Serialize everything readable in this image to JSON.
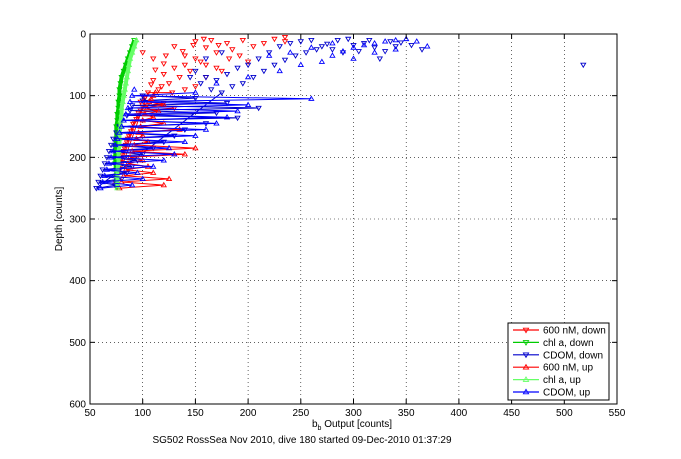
{
  "chart_data": {
    "type": "scatter",
    "title": "",
    "xlabel_main": "b",
    "xlabel_sub": "b",
    "xlabel_rest": " Output [counts]",
    "ylabel": "Depth [counts]",
    "caption": "SG502 RossSea Nov 2010, dive 180 started 09-Dec-2010 01:37:29",
    "xlim": [
      50,
      550
    ],
    "ylim": [
      0,
      600
    ],
    "y_reversed": true,
    "grid": true,
    "grid_style": "dotted",
    "legend_position": "bottom-right",
    "xticks": [
      {
        "v": 50,
        "label": "50"
      },
      {
        "v": 100,
        "label": "100"
      },
      {
        "v": 150,
        "label": "150"
      },
      {
        "v": 200,
        "label": "200"
      },
      {
        "v": 250,
        "label": "250"
      },
      {
        "v": 300,
        "label": "300"
      },
      {
        "v": 350,
        "label": "350"
      },
      {
        "v": 400,
        "label": "400"
      },
      {
        "v": 450,
        "label": "450"
      },
      {
        "v": 500,
        "label": "500"
      },
      {
        "v": 550,
        "label": "550"
      }
    ],
    "yticks": [
      {
        "v": 0,
        "label": "0"
      },
      {
        "v": 100,
        "label": "100"
      },
      {
        "v": 200,
        "label": "200"
      },
      {
        "v": 300,
        "label": "300"
      },
      {
        "v": 400,
        "label": "400"
      },
      {
        "v": 500,
        "label": "500"
      },
      {
        "v": 600,
        "label": "600"
      }
    ],
    "series": [
      {
        "name": "600 nM, down",
        "color": "#ff0000",
        "marker": "tri-down",
        "show_points": true,
        "connect": "spikes",
        "points": [
          [
            100,
            100
          ],
          [
            102,
            104
          ],
          [
            98,
            110
          ],
          [
            104,
            116
          ],
          [
            120,
            112
          ],
          [
            100,
            118
          ],
          [
            98,
            124
          ],
          [
            130,
            120
          ],
          [
            96,
            128
          ],
          [
            95,
            132
          ],
          [
            94,
            138
          ],
          [
            92,
            142
          ],
          [
            91,
            146
          ],
          [
            90,
            152
          ],
          [
            89,
            158
          ],
          [
            88,
            162
          ],
          [
            87,
            166
          ],
          [
            86,
            170
          ],
          [
            85,
            176
          ],
          [
            84,
            180
          ],
          [
            83,
            186
          ],
          [
            82,
            190
          ],
          [
            81,
            196
          ],
          [
            80,
            202
          ],
          [
            79,
            208
          ],
          [
            78,
            214
          ],
          [
            77,
            220
          ],
          [
            76,
            226
          ],
          [
            75,
            232
          ],
          [
            74,
            240
          ],
          [
            74,
            246
          ],
          [
            100,
            30
          ],
          [
            110,
            40
          ],
          [
            120,
            48
          ],
          [
            130,
            20
          ],
          [
            140,
            35
          ],
          [
            150,
            12
          ],
          [
            160,
            22
          ],
          [
            170,
            30
          ],
          [
            180,
            15
          ],
          [
            165,
            10
          ],
          [
            155,
            45
          ],
          [
            145,
            60
          ],
          [
            135,
            70
          ],
          [
            125,
            80
          ],
          [
            115,
            90
          ],
          [
            105,
            95
          ],
          [
            110,
            75
          ],
          [
            120,
            65
          ],
          [
            130,
            55
          ],
          [
            140,
            50
          ],
          [
            150,
            40
          ],
          [
            160,
            50
          ],
          [
            175,
            60
          ],
          [
            185,
            25
          ],
          [
            195,
            10
          ],
          [
            205,
            20
          ],
          [
            215,
            15
          ],
          [
            225,
            8
          ],
          [
            235,
            5
          ],
          [
            235,
            12
          ],
          [
            140,
            90
          ],
          [
            150,
            85
          ],
          [
            160,
            70
          ],
          [
            170,
            55
          ],
          [
            182,
            40
          ],
          [
            192,
            35
          ],
          [
            200,
            45
          ],
          [
            128,
            95
          ],
          [
            118,
            85
          ],
          [
            108,
            82
          ],
          [
            112,
            58
          ],
          [
            122,
            35
          ],
          [
            138,
            28
          ],
          [
            148,
            18
          ],
          [
            158,
            8
          ],
          [
            172,
            18
          ]
        ]
      },
      {
        "name": "chl a, down",
        "color": "#00cc00",
        "marker": "tri-down",
        "show_points": true,
        "connect": "dense",
        "points": [
          [
            92,
            10
          ],
          [
            90,
            20
          ],
          [
            88,
            30
          ],
          [
            86,
            40
          ],
          [
            84,
            50
          ],
          [
            82,
            60
          ],
          [
            80,
            70
          ],
          [
            79,
            80
          ],
          [
            78,
            90
          ],
          [
            78,
            100
          ],
          [
            77,
            110
          ],
          [
            77,
            120
          ],
          [
            76,
            130
          ],
          [
            76,
            140
          ],
          [
            75,
            150
          ],
          [
            75,
            160
          ],
          [
            75,
            170
          ],
          [
            74,
            180
          ],
          [
            74,
            190
          ],
          [
            74,
            200
          ],
          [
            74,
            210
          ],
          [
            75,
            220
          ],
          [
            75,
            230
          ],
          [
            75,
            240
          ],
          [
            75,
            248
          ]
        ]
      },
      {
        "name": "CDOM, down",
        "color": "#0000cc",
        "marker": "tri-down",
        "show_points": true,
        "connect": "spikes",
        "points": [
          [
            100,
            100
          ],
          [
            150,
            104
          ],
          [
            100,
            108
          ],
          [
            180,
            112
          ],
          [
            90,
            116
          ],
          [
            210,
            120
          ],
          [
            88,
            124
          ],
          [
            170,
            128
          ],
          [
            85,
            132
          ],
          [
            190,
            136
          ],
          [
            80,
            140
          ],
          [
            160,
            145
          ],
          [
            78,
            150
          ],
          [
            140,
            155
          ],
          [
            75,
            160
          ],
          [
            130,
            165
          ],
          [
            72,
            170
          ],
          [
            120,
            175
          ],
          [
            70,
            180
          ],
          [
            110,
            185
          ],
          [
            68,
            190
          ],
          [
            100,
            195
          ],
          [
            66,
            200
          ],
          [
            95,
            205
          ],
          [
            64,
            210
          ],
          [
            90,
            215
          ],
          [
            62,
            220
          ],
          [
            85,
            225
          ],
          [
            60,
            230
          ],
          [
            80,
            235
          ],
          [
            58,
            240
          ],
          [
            75,
            245
          ],
          [
            56,
            250
          ],
          [
            150,
            60
          ],
          [
            160,
            70
          ],
          [
            170,
            75
          ],
          [
            180,
            65
          ],
          [
            190,
            55
          ],
          [
            200,
            50
          ],
          [
            210,
            40
          ],
          [
            220,
            30
          ],
          [
            230,
            20
          ],
          [
            240,
            15
          ],
          [
            250,
            12
          ],
          [
            260,
            10
          ],
          [
            270,
            20
          ],
          [
            280,
            25
          ],
          [
            290,
            30
          ],
          [
            300,
            18
          ],
          [
            310,
            15
          ],
          [
            320,
            22
          ],
          [
            330,
            28
          ],
          [
            340,
            20
          ],
          [
            160,
            40
          ],
          [
            175,
            30
          ],
          [
            185,
            85
          ],
          [
            195,
            80
          ],
          [
            205,
            70
          ],
          [
            165,
            90
          ],
          [
            175,
            95
          ],
          [
            155,
            80
          ],
          [
            145,
            70
          ],
          [
            215,
            60
          ],
          [
            225,
            50
          ],
          [
            235,
            42
          ],
          [
            245,
            35
          ],
          [
            255,
            30
          ],
          [
            265,
            25
          ],
          [
            275,
            16
          ],
          [
            285,
            10
          ],
          [
            295,
            8
          ],
          [
            305,
            28
          ],
          [
            315,
            10
          ],
          [
            335,
            12
          ],
          [
            345,
            14
          ],
          [
            355,
            18
          ],
          [
            365,
            25
          ],
          [
            325,
            40
          ],
          [
            518,
            50
          ]
        ]
      },
      {
        "name": "600 nM, up",
        "color": "#ff0000",
        "marker": "tri-up",
        "show_points": true,
        "connect": "spikes",
        "points": [
          [
            78,
            250
          ],
          [
            120,
            245
          ],
          [
            80,
            240
          ],
          [
            125,
            235
          ],
          [
            82,
            230
          ],
          [
            110,
            225
          ],
          [
            84,
            220
          ],
          [
            105,
            215
          ],
          [
            86,
            210
          ],
          [
            100,
            205
          ],
          [
            88,
            200
          ],
          [
            140,
            195
          ],
          [
            90,
            190
          ],
          [
            150,
            185
          ],
          [
            92,
            180
          ],
          [
            105,
            175
          ],
          [
            94,
            170
          ],
          [
            100,
            165
          ],
          [
            96,
            160
          ],
          [
            135,
            155
          ],
          [
            98,
            150
          ],
          [
            120,
            145
          ],
          [
            100,
            140
          ],
          [
            110,
            135
          ],
          [
            102,
            130
          ],
          [
            115,
            125
          ],
          [
            104,
            120
          ],
          [
            120,
            115
          ],
          [
            106,
            110
          ],
          [
            108,
            105
          ],
          [
            110,
            100
          ],
          [
            112,
            95
          ]
        ]
      },
      {
        "name": "chl a, up",
        "color": "#66ff66",
        "marker": "tri-up",
        "show_points": true,
        "connect": "dense",
        "points": [
          [
            76,
            250
          ],
          [
            76,
            240
          ],
          [
            76,
            230
          ],
          [
            76,
            220
          ],
          [
            77,
            210
          ],
          [
            77,
            200
          ],
          [
            77,
            190
          ],
          [
            78,
            180
          ],
          [
            78,
            170
          ],
          [
            78,
            160
          ],
          [
            79,
            150
          ],
          [
            79,
            140
          ],
          [
            80,
            130
          ],
          [
            80,
            120
          ],
          [
            81,
            110
          ],
          [
            82,
            100
          ],
          [
            83,
            90
          ],
          [
            84,
            80
          ],
          [
            85,
            70
          ],
          [
            86,
            60
          ],
          [
            87,
            50
          ],
          [
            88,
            40
          ],
          [
            90,
            30
          ],
          [
            92,
            20
          ],
          [
            94,
            10
          ]
        ]
      },
      {
        "name": "CDOM, up",
        "color": "#0000ff",
        "marker": "tri-up",
        "show_points": true,
        "connect": "spikes",
        "points": [
          [
            60,
            250
          ],
          [
            90,
            245
          ],
          [
            62,
            240
          ],
          [
            100,
            235
          ],
          [
            64,
            230
          ],
          [
            95,
            225
          ],
          [
            66,
            220
          ],
          [
            110,
            215
          ],
          [
            68,
            210
          ],
          [
            120,
            205
          ],
          [
            70,
            200
          ],
          [
            130,
            195
          ],
          [
            72,
            190
          ],
          [
            125,
            185
          ],
          [
            74,
            180
          ],
          [
            140,
            175
          ],
          [
            76,
            170
          ],
          [
            150,
            165
          ],
          [
            78,
            160
          ],
          [
            160,
            155
          ],
          [
            80,
            150
          ],
          [
            170,
            145
          ],
          [
            82,
            140
          ],
          [
            180,
            135
          ],
          [
            84,
            130
          ],
          [
            190,
            125
          ],
          [
            86,
            120
          ],
          [
            200,
            115
          ],
          [
            88,
            110
          ],
          [
            260,
            105
          ],
          [
            90,
            100
          ],
          [
            150,
            95
          ],
          [
            92,
            90
          ],
          [
            170,
            80
          ],
          [
            200,
            70
          ],
          [
            230,
            60
          ],
          [
            250,
            50
          ],
          [
            270,
            45
          ],
          [
            280,
            35
          ],
          [
            290,
            28
          ],
          [
            300,
            22
          ],
          [
            310,
            18
          ],
          [
            320,
            15
          ],
          [
            330,
            12
          ],
          [
            340,
            10
          ],
          [
            350,
            8
          ],
          [
            360,
            12
          ],
          [
            370,
            20
          ],
          [
            300,
            40
          ],
          [
            320,
            30
          ],
          [
            340,
            25
          ],
          [
            280,
            15
          ],
          [
            260,
            22
          ],
          [
            240,
            30
          ],
          [
            220,
            35
          ]
        ]
      }
    ]
  }
}
